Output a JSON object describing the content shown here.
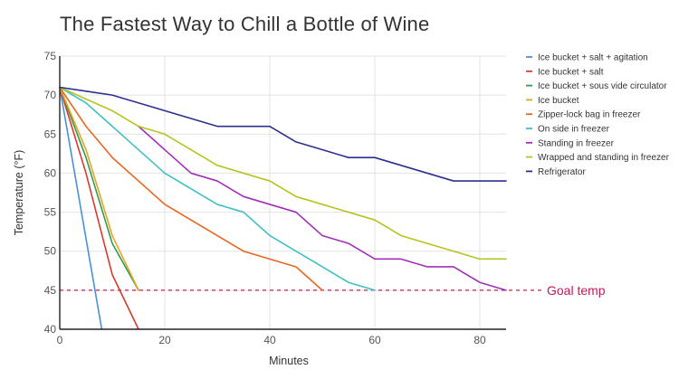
{
  "chart_data": {
    "type": "line",
    "title": "The Fastest Way to Chill a Bottle of Wine",
    "xlabel": "Minutes",
    "ylabel": "Temperature (°F)",
    "xlim": [
      0,
      85
    ],
    "ylim": [
      40,
      75
    ],
    "x_ticks": [
      0,
      20,
      40,
      60,
      80
    ],
    "y_ticks": [
      40,
      45,
      50,
      55,
      60,
      65,
      70,
      75
    ],
    "grid": true,
    "legend_position": "right",
    "reference_line": {
      "y": 45,
      "label": "Goal temp",
      "color": "#c2185b",
      "style": "dashed"
    },
    "series": [
      {
        "name": "Ice bucket + salt + agitation",
        "color": "#4a90d9",
        "points": [
          [
            0,
            71
          ],
          [
            8,
            40
          ]
        ]
      },
      {
        "name": "Ice bucket + salt",
        "color": "#d63a2f",
        "points": [
          [
            0,
            71
          ],
          [
            5,
            60
          ],
          [
            10,
            47
          ],
          [
            15,
            40
          ]
        ]
      },
      {
        "name": "Ice bucket + sous vide circulator",
        "color": "#2e9e4f",
        "points": [
          [
            0,
            71
          ],
          [
            5,
            62
          ],
          [
            10,
            51
          ],
          [
            15,
            45
          ]
        ]
      },
      {
        "name": "Ice bucket",
        "color": "#f0a020",
        "points": [
          [
            0,
            71
          ],
          [
            5,
            63
          ],
          [
            10,
            52
          ],
          [
            15,
            45
          ]
        ]
      },
      {
        "name": "Zipper-lock bag in freezer",
        "color": "#e8661e",
        "points": [
          [
            0,
            71
          ],
          [
            5,
            66
          ],
          [
            10,
            62
          ],
          [
            15,
            59
          ],
          [
            20,
            56
          ],
          [
            25,
            54
          ],
          [
            30,
            52
          ],
          [
            35,
            50
          ],
          [
            40,
            49
          ],
          [
            45,
            48
          ],
          [
            50,
            45
          ]
        ]
      },
      {
        "name": "On side in freezer",
        "color": "#3fc0c4",
        "points": [
          [
            0,
            71
          ],
          [
            5,
            69
          ],
          [
            10,
            66
          ],
          [
            15,
            63
          ],
          [
            20,
            60
          ],
          [
            25,
            58
          ],
          [
            30,
            56
          ],
          [
            35,
            55
          ],
          [
            40,
            52
          ],
          [
            45,
            50
          ],
          [
            50,
            48
          ],
          [
            55,
            46
          ],
          [
            60,
            45
          ]
        ]
      },
      {
        "name": "Standing in freezer",
        "color": "#a12fb8",
        "points": [
          [
            15,
            66
          ],
          [
            20,
            63
          ],
          [
            25,
            60
          ],
          [
            30,
            59
          ],
          [
            35,
            57
          ],
          [
            40,
            56
          ],
          [
            45,
            55
          ],
          [
            50,
            52
          ],
          [
            55,
            51
          ],
          [
            60,
            49
          ],
          [
            65,
            49
          ],
          [
            70,
            48
          ],
          [
            75,
            48
          ],
          [
            80,
            46
          ],
          [
            85,
            45
          ]
        ]
      },
      {
        "name": "Wrapped and standing in freezer",
        "color": "#b5c41f",
        "points": [
          [
            0,
            71
          ],
          [
            5,
            69.5
          ],
          [
            10,
            68
          ],
          [
            15,
            66
          ],
          [
            20,
            65
          ],
          [
            25,
            63
          ],
          [
            30,
            61
          ],
          [
            35,
            60
          ],
          [
            40,
            59
          ],
          [
            45,
            57
          ],
          [
            50,
            56
          ],
          [
            55,
            55
          ],
          [
            60,
            54
          ],
          [
            65,
            52
          ],
          [
            70,
            51
          ],
          [
            75,
            50
          ],
          [
            80,
            49
          ],
          [
            85,
            49
          ]
        ]
      },
      {
        "name": "Refrigerator",
        "color": "#2d2f8f",
        "points": [
          [
            0,
            71
          ],
          [
            5,
            70.5
          ],
          [
            10,
            70
          ],
          [
            15,
            69
          ],
          [
            20,
            68
          ],
          [
            25,
            67
          ],
          [
            30,
            66
          ],
          [
            35,
            66
          ],
          [
            40,
            66
          ],
          [
            45,
            64
          ],
          [
            50,
            63
          ],
          [
            55,
            62
          ],
          [
            60,
            62
          ],
          [
            65,
            61
          ],
          [
            70,
            60
          ],
          [
            75,
            59
          ],
          [
            80,
            59
          ],
          [
            85,
            59
          ]
        ]
      }
    ]
  }
}
